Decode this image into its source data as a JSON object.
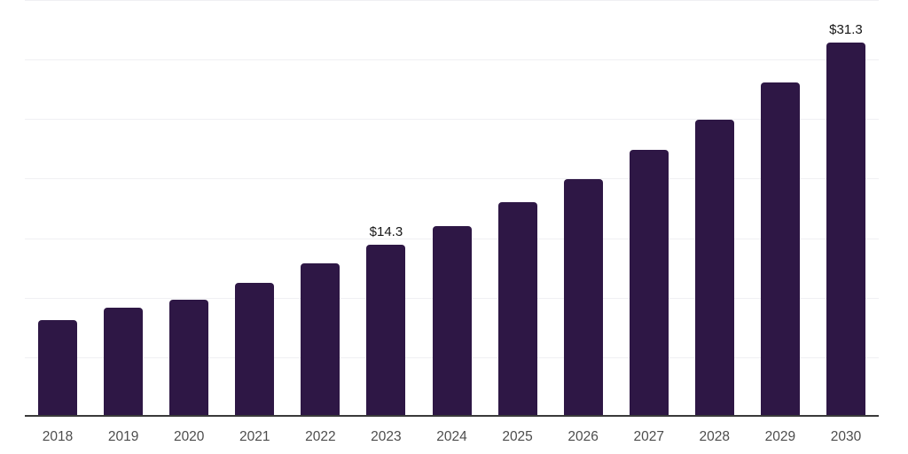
{
  "chart_data": {
    "type": "bar",
    "title": "",
    "xlabel": "",
    "ylabel": "",
    "categories": [
      "2018",
      "2019",
      "2020",
      "2021",
      "2022",
      "2023",
      "2024",
      "2025",
      "2026",
      "2027",
      "2028",
      "2029",
      "2030"
    ],
    "values": [
      8.0,
      9.0,
      9.7,
      11.1,
      12.7,
      14.3,
      15.9,
      17.9,
      19.8,
      22.3,
      24.8,
      27.9,
      31.3
    ],
    "data_labels": [
      "",
      "",
      "",
      "",
      "",
      "$14.3",
      "",
      "",
      "",
      "",
      "",
      "",
      "$31.3"
    ],
    "ylim": [
      0,
      35
    ],
    "grid_step": 5,
    "grid": "horizontal-only",
    "legend": "none",
    "y_axis_ticks_visible": false,
    "bar_color": "#2e1745",
    "grid_color": "#f0f0f3",
    "axis_line_color": "#3a3a3a",
    "value_label_color": "#161616",
    "tick_label_color": "#4d4d4d"
  }
}
